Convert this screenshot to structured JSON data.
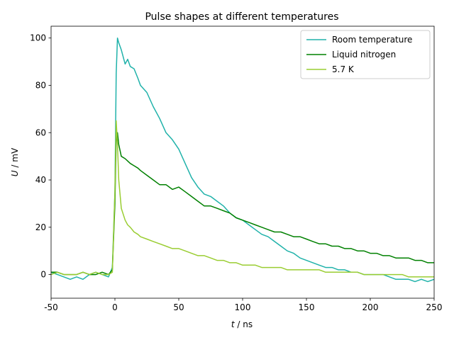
{
  "chart_data": {
    "type": "line",
    "title": "Pulse shapes at different temperatures",
    "xlabel_var": "t",
    "xlabel_unit": " / ns",
    "ylabel_var": "U",
    "ylabel_unit": " / mV",
    "xlim": [
      -50,
      250
    ],
    "ylim": [
      -10,
      105
    ],
    "xticks": [
      -50,
      0,
      50,
      100,
      150,
      200,
      250
    ],
    "yticks": [
      0,
      20,
      40,
      60,
      80,
      100
    ],
    "grid": false,
    "legend_position": "top-right",
    "series": [
      {
        "name": "Room temperature",
        "color": "#20b2aa",
        "x": [
          -50,
          -45,
          -40,
          -35,
          -30,
          -25,
          -20,
          -15,
          -10,
          -5,
          -2,
          0,
          1,
          2,
          3,
          5,
          8,
          10,
          12,
          15,
          18,
          20,
          25,
          30,
          35,
          40,
          45,
          50,
          55,
          60,
          65,
          70,
          75,
          80,
          85,
          90,
          95,
          100,
          105,
          110,
          115,
          120,
          125,
          130,
          135,
          140,
          145,
          150,
          155,
          160,
          165,
          170,
          175,
          180,
          185,
          190,
          195,
          200,
          205,
          210,
          215,
          220,
          225,
          230,
          235,
          240,
          245,
          250
        ],
        "y": [
          1,
          0,
          -1,
          -2,
          -1,
          -2,
          0,
          1,
          0,
          -1,
          3,
          35,
          85,
          100,
          98,
          95,
          89,
          91,
          88,
          87,
          83,
          80,
          77,
          71,
          66,
          60,
          57,
          53,
          47,
          41,
          37,
          34,
          33,
          31,
          29,
          26,
          24,
          23,
          21,
          19,
          17,
          16,
          14,
          12,
          10,
          9,
          7,
          6,
          5,
          4,
          3,
          3,
          2,
          2,
          1,
          1,
          0,
          0,
          0,
          0,
          -1,
          -2,
          -2,
          -2,
          -3,
          -2,
          -3,
          -2
        ]
      },
      {
        "name": "Liquid nitrogen",
        "color": "#008000",
        "x": [
          -50,
          -45,
          -40,
          -35,
          -30,
          -25,
          -20,
          -15,
          -10,
          -5,
          -2,
          0,
          1,
          2,
          3,
          5,
          8,
          10,
          12,
          15,
          18,
          20,
          25,
          30,
          35,
          40,
          45,
          50,
          55,
          60,
          65,
          70,
          75,
          80,
          85,
          90,
          95,
          100,
          105,
          110,
          115,
          120,
          125,
          130,
          135,
          140,
          145,
          150,
          155,
          160,
          165,
          170,
          175,
          180,
          185,
          190,
          195,
          200,
          205,
          210,
          215,
          220,
          225,
          230,
          235,
          240,
          245,
          250
        ],
        "y": [
          1,
          1,
          0,
          0,
          0,
          1,
          0,
          0,
          1,
          0,
          2,
          30,
          58,
          60,
          55,
          50,
          49,
          48,
          47,
          46,
          45,
          44,
          42,
          40,
          38,
          38,
          36,
          37,
          35,
          33,
          31,
          29,
          29,
          28,
          27,
          26,
          24,
          23,
          22,
          21,
          20,
          19,
          18,
          18,
          17,
          16,
          16,
          15,
          14,
          13,
          13,
          12,
          12,
          11,
          11,
          10,
          10,
          9,
          9,
          8,
          8,
          7,
          7,
          7,
          6,
          6,
          5,
          5
        ]
      },
      {
        "name": "5.7 K",
        "color": "#9acd32",
        "x": [
          -50,
          -45,
          -40,
          -35,
          -30,
          -25,
          -20,
          -15,
          -10,
          -5,
          -2,
          0,
          1,
          2,
          3,
          5,
          8,
          10,
          12,
          15,
          18,
          20,
          25,
          30,
          35,
          40,
          45,
          50,
          55,
          60,
          65,
          70,
          75,
          80,
          85,
          90,
          95,
          100,
          105,
          110,
          115,
          120,
          125,
          130,
          135,
          140,
          145,
          150,
          155,
          160,
          165,
          170,
          175,
          180,
          185,
          190,
          195,
          200,
          205,
          210,
          215,
          220,
          225,
          230,
          235,
          240,
          245,
          250
        ],
        "y": [
          0,
          1,
          0,
          0,
          0,
          1,
          0,
          1,
          0,
          0,
          1,
          35,
          65,
          55,
          40,
          28,
          23,
          21,
          20,
          18,
          17,
          16,
          15,
          14,
          13,
          12,
          11,
          11,
          10,
          9,
          8,
          8,
          7,
          6,
          6,
          5,
          5,
          4,
          4,
          4,
          3,
          3,
          3,
          3,
          2,
          2,
          2,
          2,
          2,
          2,
          1,
          1,
          1,
          1,
          1,
          1,
          0,
          0,
          0,
          0,
          0,
          0,
          0,
          -1,
          -1,
          -1,
          -1,
          -1
        ]
      }
    ]
  }
}
